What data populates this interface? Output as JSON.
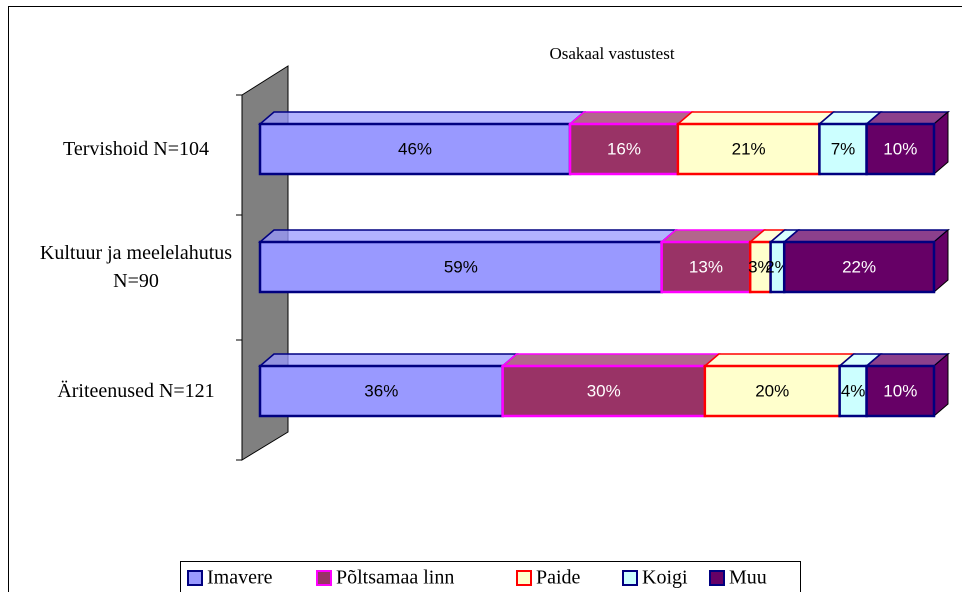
{
  "chart_data": {
    "type": "bar",
    "orientation": "horizontal",
    "stacked": true,
    "title": "Osakaal vastustest",
    "categories": [
      "Tervishoid N=104",
      "Kultuur ja meelelahutus N=90",
      "Äriteenused N=121"
    ],
    "series": [
      {
        "name": "Imavere",
        "color": "#9999ff",
        "values": [
          46,
          59,
          36
        ],
        "value_labels": [
          "46%",
          "59%",
          "36%"
        ]
      },
      {
        "name": "Põltsamaa linn",
        "color": "#993366",
        "values": [
          16,
          13,
          30
        ],
        "value_labels": [
          "16%",
          "13%",
          "30%"
        ]
      },
      {
        "name": "Paide",
        "color": "#ffffcc",
        "values": [
          21,
          3,
          20
        ],
        "value_labels": [
          "21%",
          "3%",
          "20%"
        ]
      },
      {
        "name": "Koigi",
        "color": "#ccffff",
        "values": [
          7,
          2,
          4
        ],
        "value_labels": [
          "7%",
          "2%",
          "4%"
        ]
      },
      {
        "name": "Muu",
        "color": "#660066",
        "values": [
          10,
          22,
          10
        ],
        "value_labels": [
          "10%",
          "22%",
          "10%"
        ]
      }
    ]
  }
}
